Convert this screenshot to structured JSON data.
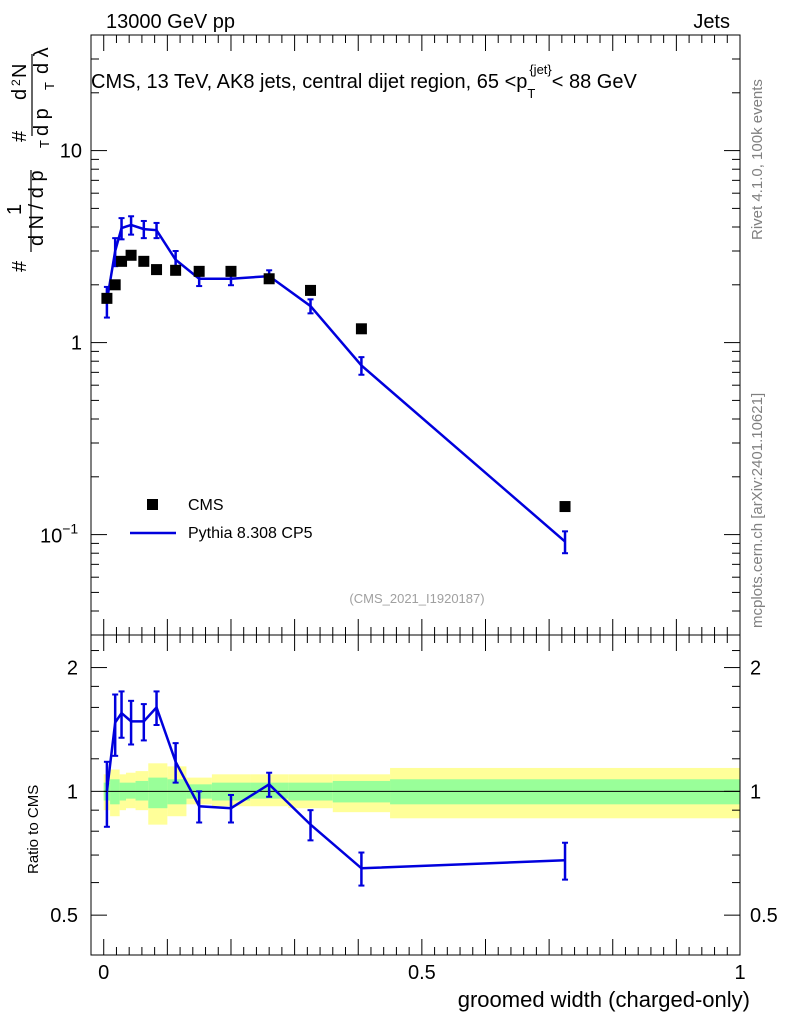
{
  "header": {
    "energy": "13000 GeV pp",
    "category": "Jets"
  },
  "side_labels": {
    "rivet": "Rivet 4.1.0,  100k events",
    "site": "mcplots.cern.ch [arXiv:2401.10621]"
  },
  "analysis_id": "(CMS_2021_I1920187)",
  "colors": {
    "data": "#000000",
    "mc": "#0000dd",
    "band_inner": "#99ff99",
    "band_outer": "#ffff99"
  },
  "chart_data": [
    {
      "type": "line",
      "panel": "main",
      "title": "CMS, 13 TeV, AK8 jets, central dijet region, 65 <p_T^{jet}< 88 GeV",
      "title_parts": {
        "pre": "CMS, 13 TeV, AK8 jets, central dijet region, 65 <",
        "p": "p",
        "sub": "T",
        "sup": "{jet}",
        "post": "< 88 GeV"
      },
      "ylabel": "1/N dN/dp_T  d²N/(dp_T dλ)",
      "ylabel_parts": {
        "one": "1",
        "n": "d N / d p",
        "sub": "T",
        "num": "d",
        "sq": "2",
        "N": "N",
        "den": "d p",
        "lam": "d λ",
        "hash": "#"
      },
      "yscale": "log",
      "ylim": [
        0.03,
        40
      ],
      "xlim": [
        -0.02,
        1.0
      ],
      "yticks": [
        {
          "value": 0.1,
          "label_base": "10",
          "label_exp": "−1"
        },
        {
          "value": 1,
          "label": "1"
        },
        {
          "value": 10,
          "label": "10"
        }
      ],
      "legend": {
        "position": "bottom-left",
        "entries": [
          "CMS",
          "Pythia 8.308 CP5"
        ]
      },
      "series": [
        {
          "name": "CMS",
          "style": "markers",
          "x": [
            0.005,
            0.018,
            0.028,
            0.043,
            0.063,
            0.083,
            0.113,
            0.15,
            0.2,
            0.26,
            0.325,
            0.405,
            0.725
          ],
          "y": [
            1.7,
            2.0,
            2.65,
            2.85,
            2.65,
            2.4,
            2.38,
            2.35,
            2.35,
            2.15,
            1.87,
            1.18,
            0.14
          ]
        },
        {
          "name": "Pythia 8.308 CP5",
          "style": "line",
          "x": [
            0.005,
            0.018,
            0.028,
            0.043,
            0.063,
            0.083,
            0.113,
            0.15,
            0.2,
            0.26,
            0.325,
            0.405,
            0.725
          ],
          "y": [
            1.65,
            3.0,
            3.95,
            4.1,
            3.9,
            3.85,
            2.7,
            2.15,
            2.15,
            2.22,
            1.55,
            0.76,
            0.092
          ],
          "yerr": [
            0.3,
            0.5,
            0.5,
            0.45,
            0.4,
            0.35,
            0.3,
            0.18,
            0.16,
            0.16,
            0.13,
            0.08,
            0.012
          ]
        }
      ]
    },
    {
      "type": "line",
      "panel": "ratio",
      "ylabel": "Ratio to CMS",
      "xlabel": "groomed width (charged-only)",
      "ylim": [
        0.4,
        2.4
      ],
      "xlim": [
        -0.02,
        1.0
      ],
      "yticks": [
        {
          "value": 0.5,
          "label": "0.5"
        },
        {
          "value": 1,
          "label": "1"
        },
        {
          "value": 2,
          "label": "2"
        }
      ],
      "xticks": [
        {
          "value": 0,
          "label": "0"
        },
        {
          "value": 0.5,
          "label": "0.5"
        },
        {
          "value": 1,
          "label": "1"
        }
      ],
      "bins": [
        0.0,
        0.01,
        0.025,
        0.035,
        0.05,
        0.07,
        0.1,
        0.13,
        0.17,
        0.23,
        0.29,
        0.36,
        0.45,
        1.0
      ],
      "band_inner": [
        [
          0.95,
          1.05
        ],
        [
          0.93,
          1.07
        ],
        [
          0.95,
          1.05
        ],
        [
          0.96,
          1.05
        ],
        [
          0.95,
          1.06
        ],
        [
          0.91,
          1.08
        ],
        [
          0.93,
          1.07
        ],
        [
          0.96,
          1.04
        ],
        [
          0.95,
          1.05
        ],
        [
          0.96,
          1.05
        ],
        [
          0.95,
          1.05
        ],
        [
          0.94,
          1.06
        ],
        [
          0.93,
          1.07
        ]
      ],
      "band_outer": [
        [
          0.9,
          1.1
        ],
        [
          0.87,
          1.13
        ],
        [
          0.9,
          1.1
        ],
        [
          0.91,
          1.11
        ],
        [
          0.9,
          1.12
        ],
        [
          0.83,
          1.17
        ],
        [
          0.87,
          1.15
        ],
        [
          0.93,
          1.08
        ],
        [
          0.92,
          1.1
        ],
        [
          0.92,
          1.1
        ],
        [
          0.91,
          1.1
        ],
        [
          0.89,
          1.1
        ],
        [
          0.86,
          1.14
        ]
      ],
      "series": [
        {
          "name": "Pythia 8.308 CP5",
          "x": [
            0.005,
            0.018,
            0.028,
            0.043,
            0.063,
            0.083,
            0.113,
            0.15,
            0.2,
            0.26,
            0.325,
            0.405,
            0.725
          ],
          "y": [
            1.0,
            1.47,
            1.55,
            1.48,
            1.48,
            1.6,
            1.18,
            0.92,
            0.91,
            1.04,
            0.83,
            0.65,
            0.68
          ],
          "yerr": [
            0.18,
            0.25,
            0.2,
            0.18,
            0.15,
            0.15,
            0.13,
            0.08,
            0.07,
            0.07,
            0.07,
            0.06,
            0.07
          ]
        }
      ]
    }
  ]
}
